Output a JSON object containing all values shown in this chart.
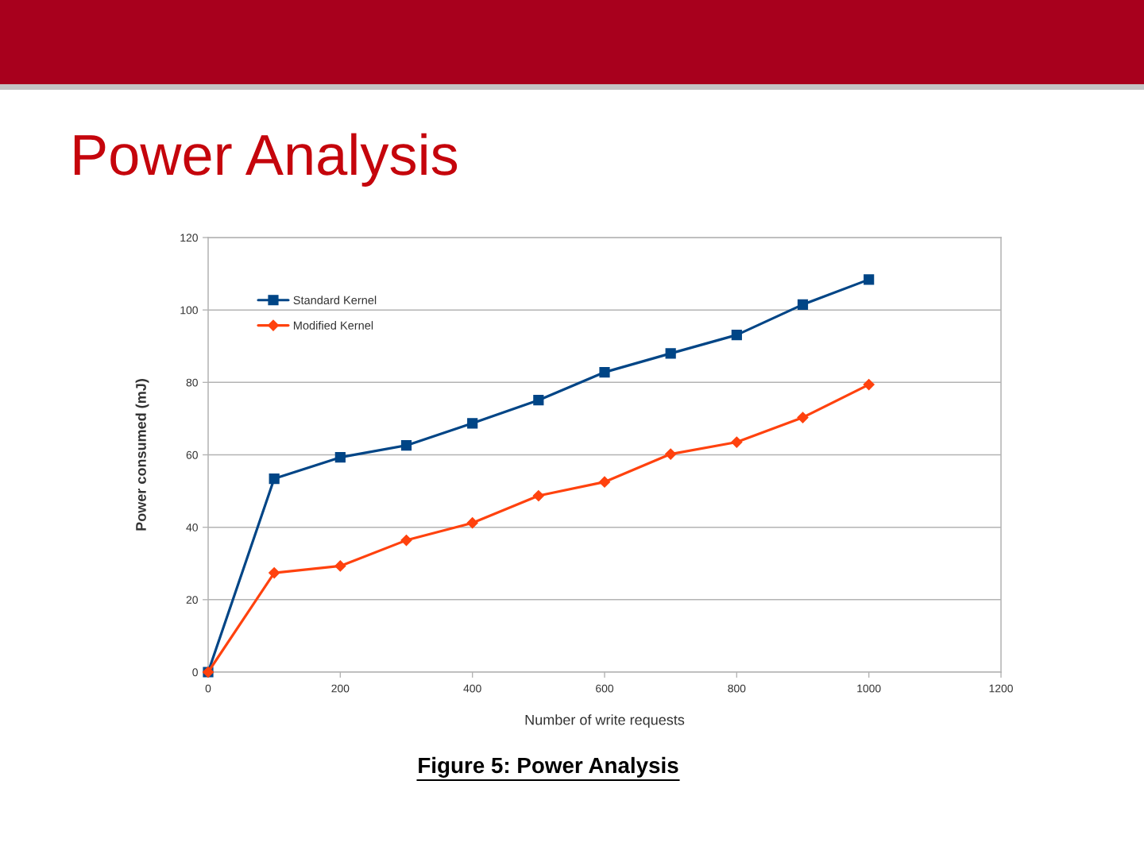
{
  "chart_data": {
    "type": "line",
    "title": "Power Analysis",
    "xlabel": "Number of write requests",
    "ylabel": "Power consumed (mJ)",
    "x": [
      0,
      100,
      200,
      300,
      400,
      500,
      600,
      700,
      800,
      900,
      1000
    ],
    "series": [
      {
        "name": "Standard Kernel",
        "color": "#004586",
        "marker": "square",
        "values": [
          0,
          53.4,
          59.3,
          62.6,
          68.7,
          75.1,
          82.8,
          88.0,
          93.1,
          101.5,
          108.4
        ]
      },
      {
        "name": "Modified Kernel",
        "color": "#ff420e",
        "marker": "diamond",
        "values": [
          0,
          27.4,
          29.3,
          36.4,
          41.2,
          48.7,
          52.5,
          60.2,
          63.5,
          70.3,
          79.4
        ]
      }
    ],
    "xlim": [
      0,
      1200
    ],
    "ylim": [
      0,
      120
    ],
    "xticks": [
      0,
      200,
      400,
      600,
      800,
      1000,
      1200
    ],
    "yticks": [
      0,
      20,
      40,
      60,
      80,
      100,
      120
    ],
    "grid": "y",
    "legend": "top left",
    "line_style": "solid",
    "annotations": [
      "Figure 5: Power Analysis"
    ]
  }
}
